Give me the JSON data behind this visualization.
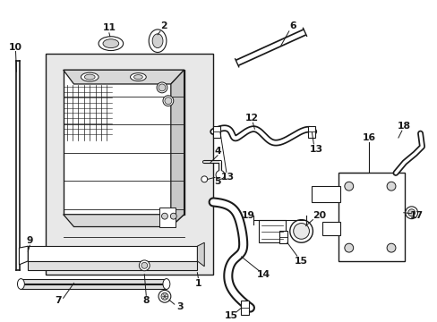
{
  "background_color": "#ffffff",
  "line_color": "#1a1a1a",
  "gray_fill": "#e8e8e8",
  "light_gray": "#f0f0f0",
  "fig_w": 4.89,
  "fig_h": 3.6,
  "dpi": 100
}
